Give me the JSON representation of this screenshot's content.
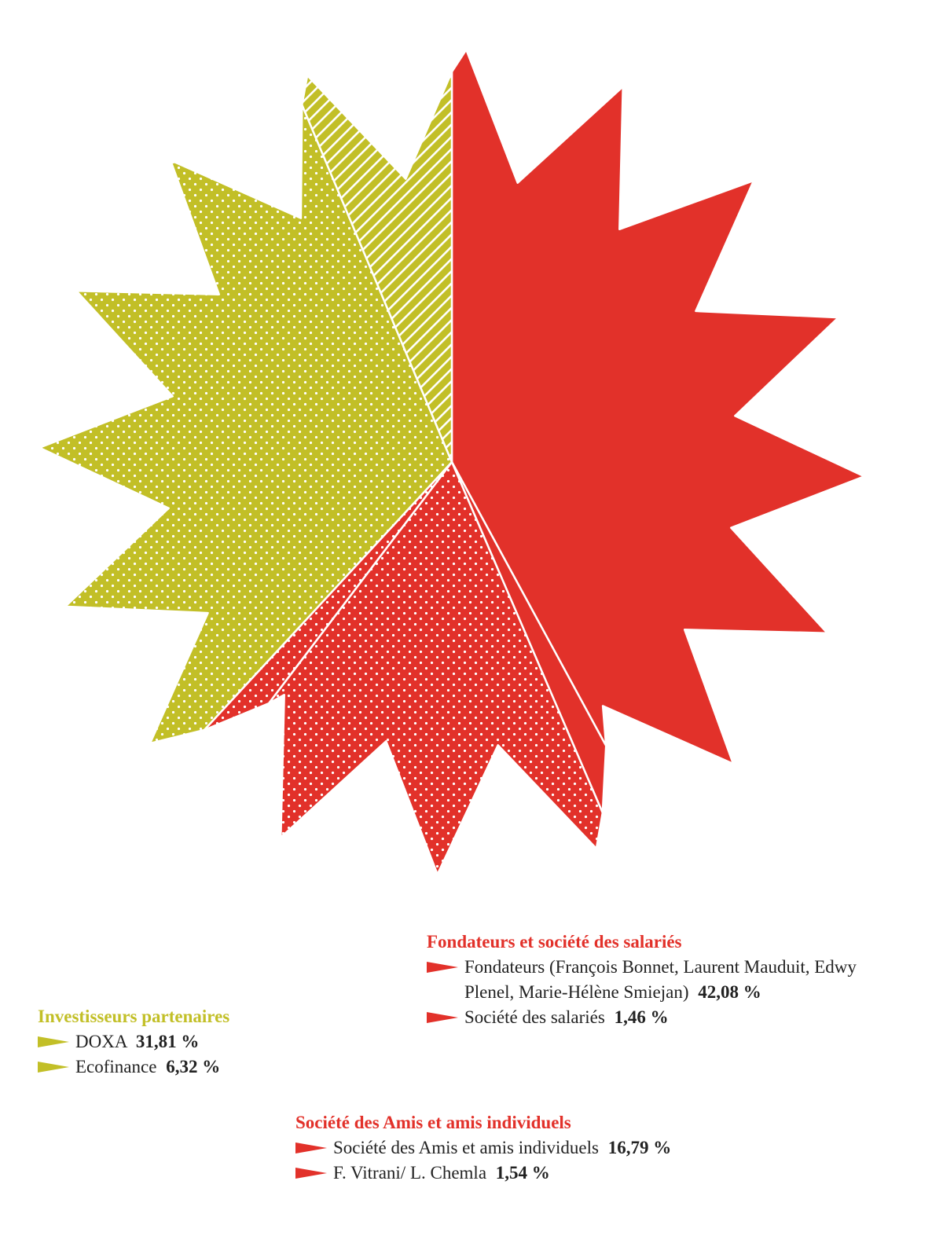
{
  "colors": {
    "red": "#e2312a",
    "olive": "#c2bf27",
    "white": "#ffffff"
  },
  "chart_data": {
    "type": "pie",
    "style": "starburst",
    "slices": [
      {
        "label": "Fondateurs (François Bonnet, Laurent Mauduit, Edwy Plenel, Marie-Hélène Smiejan)",
        "value": 42.08,
        "group": "Fondateurs et société des salariés",
        "color": "#e2312a",
        "pattern": "solid"
      },
      {
        "label": "Société des salariés",
        "value": 1.46,
        "group": "Fondateurs et société des salariés",
        "color": "#e2312a",
        "pattern": "solid"
      },
      {
        "label": "Société des Amis et amis individuels",
        "value": 16.79,
        "group": "Société des Amis et amis individuels",
        "color": "#e2312a",
        "pattern": "dots"
      },
      {
        "label": "F. Vitrani/ L. Chemla",
        "value": 1.54,
        "group": "Société des Amis et amis individuels",
        "color": "#e2312a",
        "pattern": "dots"
      },
      {
        "label": "DOXA",
        "value": 31.81,
        "group": "Investisseurs partenaires",
        "color": "#c2bf27",
        "pattern": "dots"
      },
      {
        "label": "Ecofinance",
        "value": 6.32,
        "group": "Investisseurs partenaires",
        "color": "#c2bf27",
        "pattern": "stripes"
      }
    ]
  },
  "legend": {
    "fondateurs": {
      "title": "Fondateurs et société des salariés",
      "items": [
        {
          "label": "Fondateurs (François Bonnet, Laurent Mauduit, Edwy Plenel, Marie-Hélène Smiejan)",
          "value": "42,08 %"
        },
        {
          "label": "Société des salariés",
          "value": "1,46 %"
        }
      ]
    },
    "investisseurs": {
      "title": "Investisseurs partenaires",
      "items": [
        {
          "label": "DOXA",
          "value": "31,81 %"
        },
        {
          "label": "Ecofinance",
          "value": "6,32 %"
        }
      ]
    },
    "amis": {
      "title": "Société des Amis et amis individuels",
      "items": [
        {
          "label": "Société des Amis et amis individuels",
          "value": "16,79 %"
        },
        {
          "label": "F. Vitrani/ L. Chemla",
          "value": "1,54 %"
        }
      ]
    }
  }
}
